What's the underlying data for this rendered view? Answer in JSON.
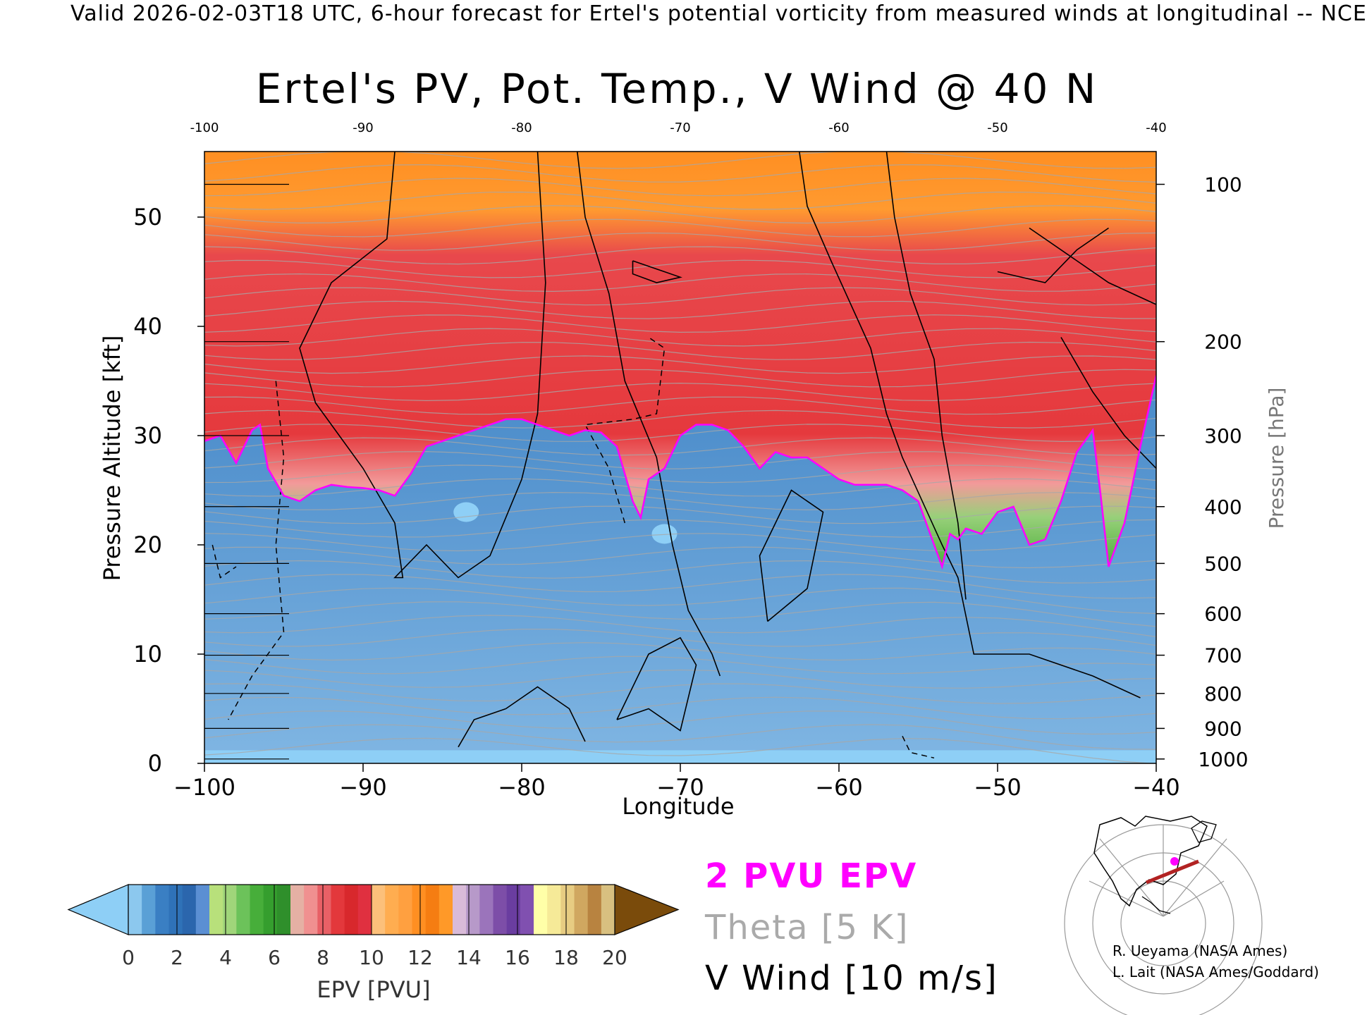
{
  "banner": "Valid 2026-02-03T18 UTC, 6-hour forecast for Ertel's potential vorticity from measured winds at longitudinal -- NCE",
  "chart_data": {
    "type": "heatmap",
    "title": "Ertel's PV, Pot. Temp., V Wind @ 40 N",
    "xlabel": "Longitude",
    "ylabel": "Pressure Altitude [kft]",
    "y2label": "Pressure [hPa]",
    "xlim": [
      -100,
      -40
    ],
    "ylim": [
      0,
      56
    ],
    "x_ticks": [
      -100,
      -90,
      -80,
      -70,
      -60,
      -50,
      -40
    ],
    "x_tick_labels": [
      "−100",
      "−90",
      "−80",
      "−70",
      "−60",
      "−50",
      "−40"
    ],
    "x_top_tick_labels": [
      "-100",
      "-90",
      "-80",
      "-70",
      "-60",
      "-50",
      "-40"
    ],
    "y_ticks": [
      0,
      10,
      20,
      30,
      40,
      50
    ],
    "y_tick_labels": [
      "0",
      "10",
      "20",
      "30",
      "40",
      "50"
    ],
    "pressure_ticks": [
      {
        "label": "100",
        "kft": 53.0
      },
      {
        "label": "200",
        "kft": 38.6
      },
      {
        "label": "300",
        "kft": 30.0
      },
      {
        "label": "400",
        "kft": 23.5
      },
      {
        "label": "500",
        "kft": 18.3
      },
      {
        "label": "600",
        "kft": 13.7
      },
      {
        "label": "700",
        "kft": 9.9
      },
      {
        "label": "800",
        "kft": 6.4
      },
      {
        "label": "900",
        "kft": 3.2
      },
      {
        "label": "1000",
        "kft": 0.4
      }
    ],
    "tropopause_2pvu_kft": {
      "lon": [
        -100,
        -99,
        -98,
        -97,
        -96.5,
        -96,
        -95,
        -94,
        -93,
        -92,
        -91,
        -90,
        -89,
        -88,
        -87,
        -86,
        -85,
        -84,
        -83,
        -82,
        -81,
        -80,
        -79,
        -78,
        -77,
        -76,
        -75,
        -74,
        -73,
        -72.5,
        -72,
        -71,
        -70,
        -69,
        -68,
        -67,
        -66,
        -65,
        -64,
        -63,
        -62,
        -61,
        -60,
        -59,
        -58,
        -57,
        -56,
        -55,
        -54,
        -53.5,
        -53,
        -52.5,
        -52,
        -51,
        -50,
        -49,
        -48,
        -47,
        -46,
        -45,
        -44,
        -43.5,
        -43,
        -42,
        -41,
        -40
      ],
      "kft": [
        29.5,
        30,
        27.5,
        30.5,
        31,
        27,
        24.5,
        24,
        25,
        25.5,
        25.3,
        25.2,
        25,
        24.5,
        26.5,
        29,
        29.5,
        30,
        30.5,
        31,
        31.5,
        31.5,
        31,
        30.5,
        30,
        30.5,
        30.3,
        29,
        24,
        22.5,
        26,
        27,
        30,
        31,
        31,
        30.5,
        29,
        27,
        28.5,
        28,
        28,
        27,
        26,
        25.5,
        25.5,
        25.5,
        25,
        24,
        20,
        18,
        21,
        20.5,
        21.5,
        21,
        23,
        23.5,
        20,
        20.5,
        24,
        28.5,
        30.5,
        24.5,
        18,
        22,
        29,
        35.5
      ]
    },
    "epv_low_regions": [
      {
        "lon": -83.5,
        "kft": 23
      },
      {
        "lon": -71,
        "kft": 21
      }
    ],
    "colorbar": {
      "label": "EPV [PVU]",
      "ticks": [
        "0",
        "2",
        "4",
        "6",
        "8",
        "10",
        "12",
        "14",
        "16",
        "18",
        "20"
      ],
      "min": 0,
      "max": 20,
      "under_color": "#8ecff6",
      "over_color": "#7a4b0b",
      "colors": [
        "#8cc8ee",
        "#5aa0d6",
        "#3a7fc3",
        "#2f72b8",
        "#2b66ad",
        "#5b8fd3",
        "#b8e07b",
        "#a0d57a",
        "#6cc25a",
        "#47ae3a",
        "#359e2e",
        "#2f8f2b",
        "#e5b0a4",
        "#f09090",
        "#e86066",
        "#e3383c",
        "#d8282c",
        "#e03040",
        "#fcc07a",
        "#ffad50",
        "#ffa040",
        "#ff8f22",
        "#f57d12",
        "#ff9928",
        "#d9bbd8",
        "#b799c9",
        "#9b74bb",
        "#7d4ea8",
        "#6a3da0",
        "#8050b0",
        "#ffffa8",
        "#f6ea98",
        "#e7cc82",
        "#d0a760",
        "#b88340",
        "#d8c080"
      ]
    },
    "legend": [
      {
        "label": "2 PVU EPV",
        "color": "#ff00ff"
      },
      {
        "label": "Theta [5 K]",
        "color": "#aaaaaa"
      },
      {
        "label": "V Wind [10 m/s]",
        "color": "#000000"
      }
    ]
  },
  "credits": [
    "R. Ueyama (NASA Ames)",
    "L. Lait (NASA Ames/Goddard)"
  ],
  "colors": {
    "tropopause": "#ff00ff",
    "theta": "#a8a8a8",
    "wind": "#000000",
    "stratosphere_red": "#e8404a",
    "stratosphere_orange": "#ff9a30",
    "transition_green": "#4fb53c",
    "troposphere_blue": "#4f8fcc",
    "map_track": "#b22222"
  }
}
